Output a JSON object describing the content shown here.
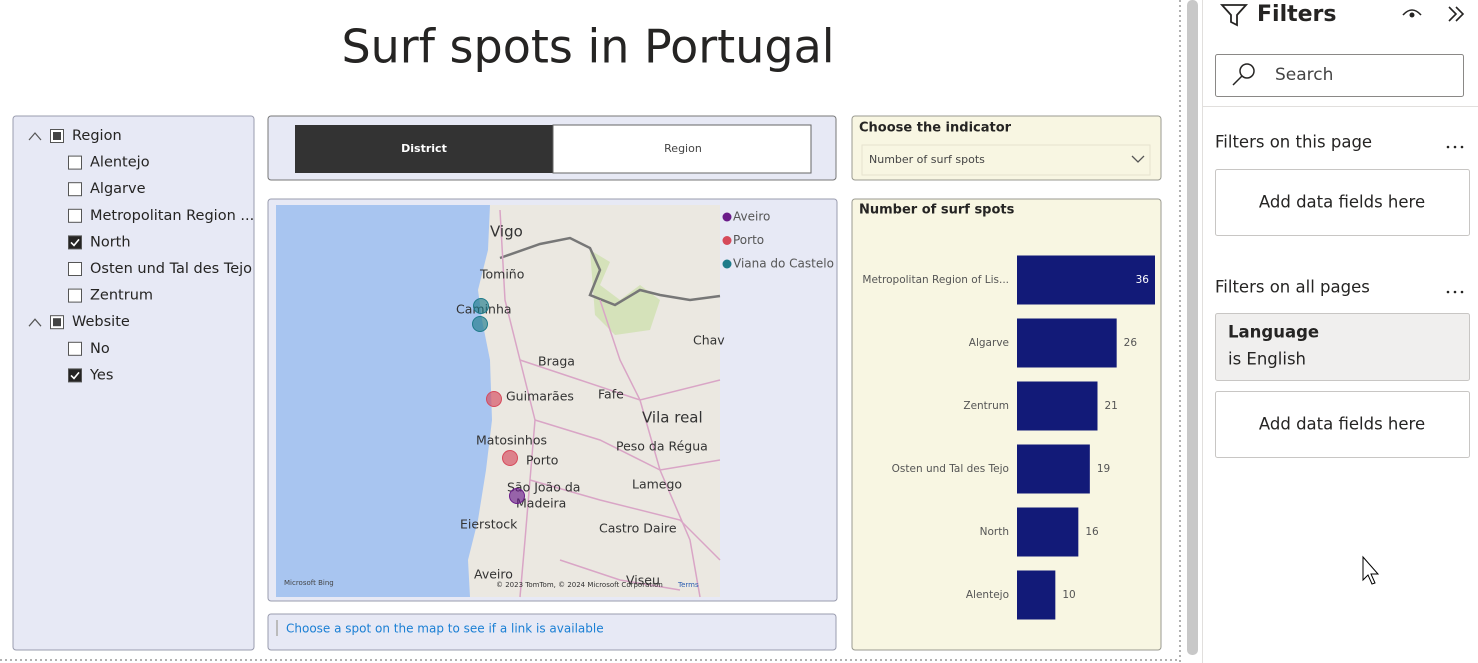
{
  "report": {
    "title": "Surf spots in Portugal"
  },
  "slicer": {
    "groups": [
      {
        "label": "Region",
        "items": [
          {
            "label": "Alentejo",
            "checked": false
          },
          {
            "label": "Algarve",
            "checked": false
          },
          {
            "label": "Metropolitan Region ...",
            "checked": false
          },
          {
            "label": "North",
            "checked": true
          },
          {
            "label": "Osten und Tal des Tejo",
            "checked": false
          },
          {
            "label": "Zentrum",
            "checked": false
          }
        ]
      },
      {
        "label": "Website",
        "items": [
          {
            "label": "No",
            "checked": false
          },
          {
            "label": "Yes",
            "checked": true
          }
        ]
      }
    ]
  },
  "buttons": [
    {
      "label": "District",
      "selected": true
    },
    {
      "label": "Region",
      "selected": false
    }
  ],
  "map": {
    "legend": [
      {
        "name": "Aveiro",
        "color": "#6a1b8a"
      },
      {
        "name": "Porto",
        "color": "#d64a5c"
      },
      {
        "name": "Viana do Castelo",
        "color": "#1e7b8a"
      }
    ],
    "places": [
      "Vigo",
      "Tomiño",
      "Caminha",
      "Braga",
      "Guimarães",
      "Fafe",
      "Vila real",
      "Matosinhos",
      "Porto",
      "Peso da Régua",
      "Lamego",
      "São João da",
      "Madeira",
      "Eierstock",
      "Castro Daire",
      "Aveiro",
      "Viseu",
      "Chav"
    ],
    "attribution": {
      "logo": "Microsoft Bing",
      "copyright": "© 2023 TomTom, © 2024 Microsoft Corporation",
      "terms": "Terms"
    }
  },
  "textbox": {
    "text": "Choose a spot on the map to see if a link is available"
  },
  "indicator": {
    "title": "Choose the indicator",
    "selected": "Number of surf spots"
  },
  "chart_data": {
    "type": "bar",
    "orientation": "horizontal",
    "title": "Number of surf spots",
    "categories": [
      "Metropolitan Region of Lis...",
      "Algarve",
      "Zentrum",
      "Osten und Tal des Tejo",
      "North",
      "Alentejo"
    ],
    "values": [
      36,
      26,
      21,
      19,
      16,
      10
    ],
    "color": "#121a78"
  },
  "filters": {
    "title": "Filters",
    "search": "Search",
    "this_page": {
      "title": "Filters on this page",
      "placeholder": "Add data fields here"
    },
    "all_pages": {
      "title": "Filters on all pages",
      "card": {
        "field": "Language",
        "condition": "is English"
      },
      "placeholder": "Add data fields here"
    }
  }
}
